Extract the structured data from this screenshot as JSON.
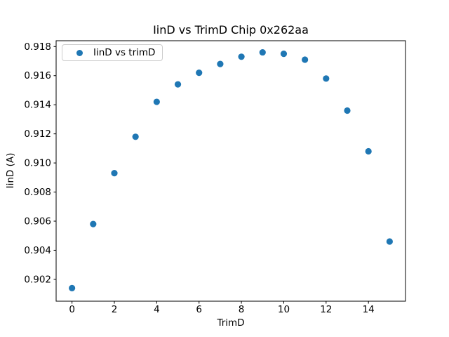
{
  "figure": {
    "background": "#ffffff",
    "spine_color": "#000000"
  },
  "chart_data": {
    "type": "scatter",
    "title": "IinD vs TrimD Chip 0x262aa",
    "xlabel": "TrimD",
    "ylabel": "IinD (A)",
    "grid": false,
    "legend": {
      "label": "IinD vs trimD",
      "position": "upper left"
    },
    "marker_color": "#1f77b4",
    "x": [
      0,
      1,
      2,
      3,
      4,
      5,
      6,
      7,
      8,
      9,
      10,
      11,
      12,
      13,
      14,
      15
    ],
    "y": [
      0.9014,
      0.9058,
      0.9093,
      0.9118,
      0.9142,
      0.9154,
      0.9162,
      0.9168,
      0.9173,
      0.9176,
      0.9175,
      0.9171,
      0.9158,
      0.9136,
      0.9108,
      0.9046
    ],
    "xlim": [
      -0.75,
      15.75
    ],
    "ylim": [
      0.9005,
      0.9184
    ],
    "xticks": {
      "values": [
        0,
        2,
        4,
        6,
        8,
        10,
        12,
        14
      ],
      "labels": [
        "0",
        "2",
        "4",
        "6",
        "8",
        "10",
        "12",
        "14"
      ]
    },
    "yticks": {
      "values": [
        0.902,
        0.904,
        0.906,
        0.908,
        0.91,
        0.912,
        0.914,
        0.916,
        0.918
      ],
      "labels": [
        "0.902",
        "0.904",
        "0.906",
        "0.908",
        "0.910",
        "0.912",
        "0.914",
        "0.916",
        "0.918"
      ]
    }
  }
}
